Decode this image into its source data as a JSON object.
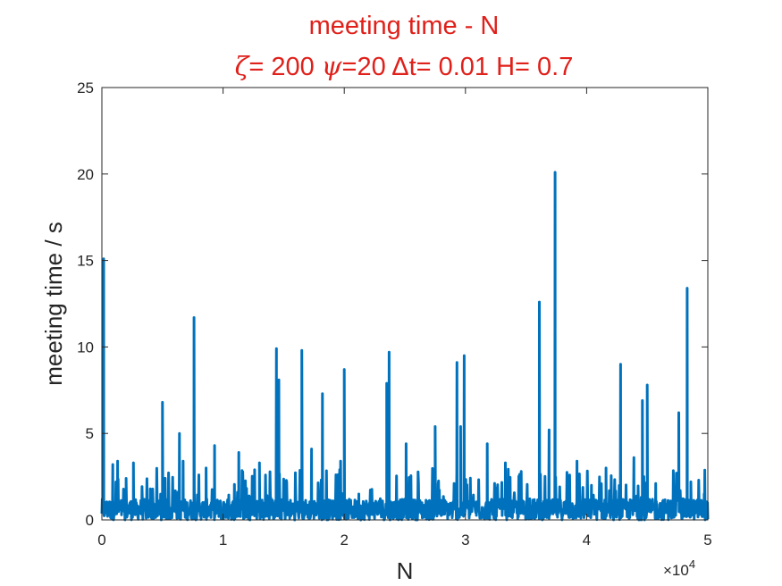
{
  "chart_data": {
    "type": "line",
    "title_line1": "meeting time - N",
    "title_line2": {
      "zeta_symbol": "ζ",
      "zeta_text": "= 200 ",
      "psi_symbol": "ψ",
      "psi_text": "=20 ",
      "delta_symbol": "Δ",
      "rest_text": "t= 0.01 H= 0.7"
    },
    "xlabel": "N",
    "ylabel": "meeting time / s",
    "x_exponent_label": "×10",
    "x_exponent_power": "4",
    "xlim": [
      0,
      50000
    ],
    "ylim": [
      0,
      25
    ],
    "x_ticks": [
      0,
      10000,
      20000,
      30000,
      40000,
      50000
    ],
    "x_tick_labels": [
      "0",
      "1",
      "2",
      "3",
      "4",
      "5"
    ],
    "y_ticks": [
      0,
      5,
      10,
      15,
      20,
      25
    ],
    "y_tick_labels": [
      "0",
      "5",
      "10",
      "15",
      "20",
      "25"
    ],
    "series_color": "#0072bd",
    "baseline_band": [
      0,
      1.2
    ],
    "spikes": [
      {
        "x": 150,
        "y": 15.1
      },
      {
        "x": 900,
        "y": 3.2
      },
      {
        "x": 1300,
        "y": 3.4
      },
      {
        "x": 2000,
        "y": 2.4
      },
      {
        "x": 2600,
        "y": 3.3
      },
      {
        "x": 4000,
        "y": 1.8
      },
      {
        "x": 5000,
        "y": 6.8
      },
      {
        "x": 6400,
        "y": 5.0
      },
      {
        "x": 6700,
        "y": 3.4
      },
      {
        "x": 7600,
        "y": 11.7
      },
      {
        "x": 8600,
        "y": 3.0
      },
      {
        "x": 9300,
        "y": 4.3
      },
      {
        "x": 11300,
        "y": 3.9
      },
      {
        "x": 12600,
        "y": 2.9
      },
      {
        "x": 13000,
        "y": 3.3
      },
      {
        "x": 14400,
        "y": 9.9
      },
      {
        "x": 14600,
        "y": 8.1
      },
      {
        "x": 16500,
        "y": 9.8
      },
      {
        "x": 17300,
        "y": 4.1
      },
      {
        "x": 18200,
        "y": 7.3
      },
      {
        "x": 19700,
        "y": 3.4
      },
      {
        "x": 20000,
        "y": 8.7
      },
      {
        "x": 21200,
        "y": 1.5
      },
      {
        "x": 23500,
        "y": 7.9
      },
      {
        "x": 23700,
        "y": 9.7
      },
      {
        "x": 25100,
        "y": 4.4
      },
      {
        "x": 27500,
        "y": 5.4
      },
      {
        "x": 29300,
        "y": 9.1
      },
      {
        "x": 29600,
        "y": 5.4
      },
      {
        "x": 29900,
        "y": 9.5
      },
      {
        "x": 31800,
        "y": 4.4
      },
      {
        "x": 33300,
        "y": 3.3
      },
      {
        "x": 34600,
        "y": 2.8
      },
      {
        "x": 36100,
        "y": 12.6
      },
      {
        "x": 36900,
        "y": 5.2
      },
      {
        "x": 37400,
        "y": 20.1
      },
      {
        "x": 38600,
        "y": 2.6
      },
      {
        "x": 39200,
        "y": 3.4
      },
      {
        "x": 40400,
        "y": 2.0
      },
      {
        "x": 41600,
        "y": 3.0
      },
      {
        "x": 42800,
        "y": 9.0
      },
      {
        "x": 43900,
        "y": 3.6
      },
      {
        "x": 44600,
        "y": 6.9
      },
      {
        "x": 45000,
        "y": 7.8
      },
      {
        "x": 45700,
        "y": 2.1
      },
      {
        "x": 47600,
        "y": 6.2
      },
      {
        "x": 48300,
        "y": 13.4
      },
      {
        "x": 48600,
        "y": 2.2
      },
      {
        "x": 49700,
        "y": 1.5
      }
    ]
  }
}
